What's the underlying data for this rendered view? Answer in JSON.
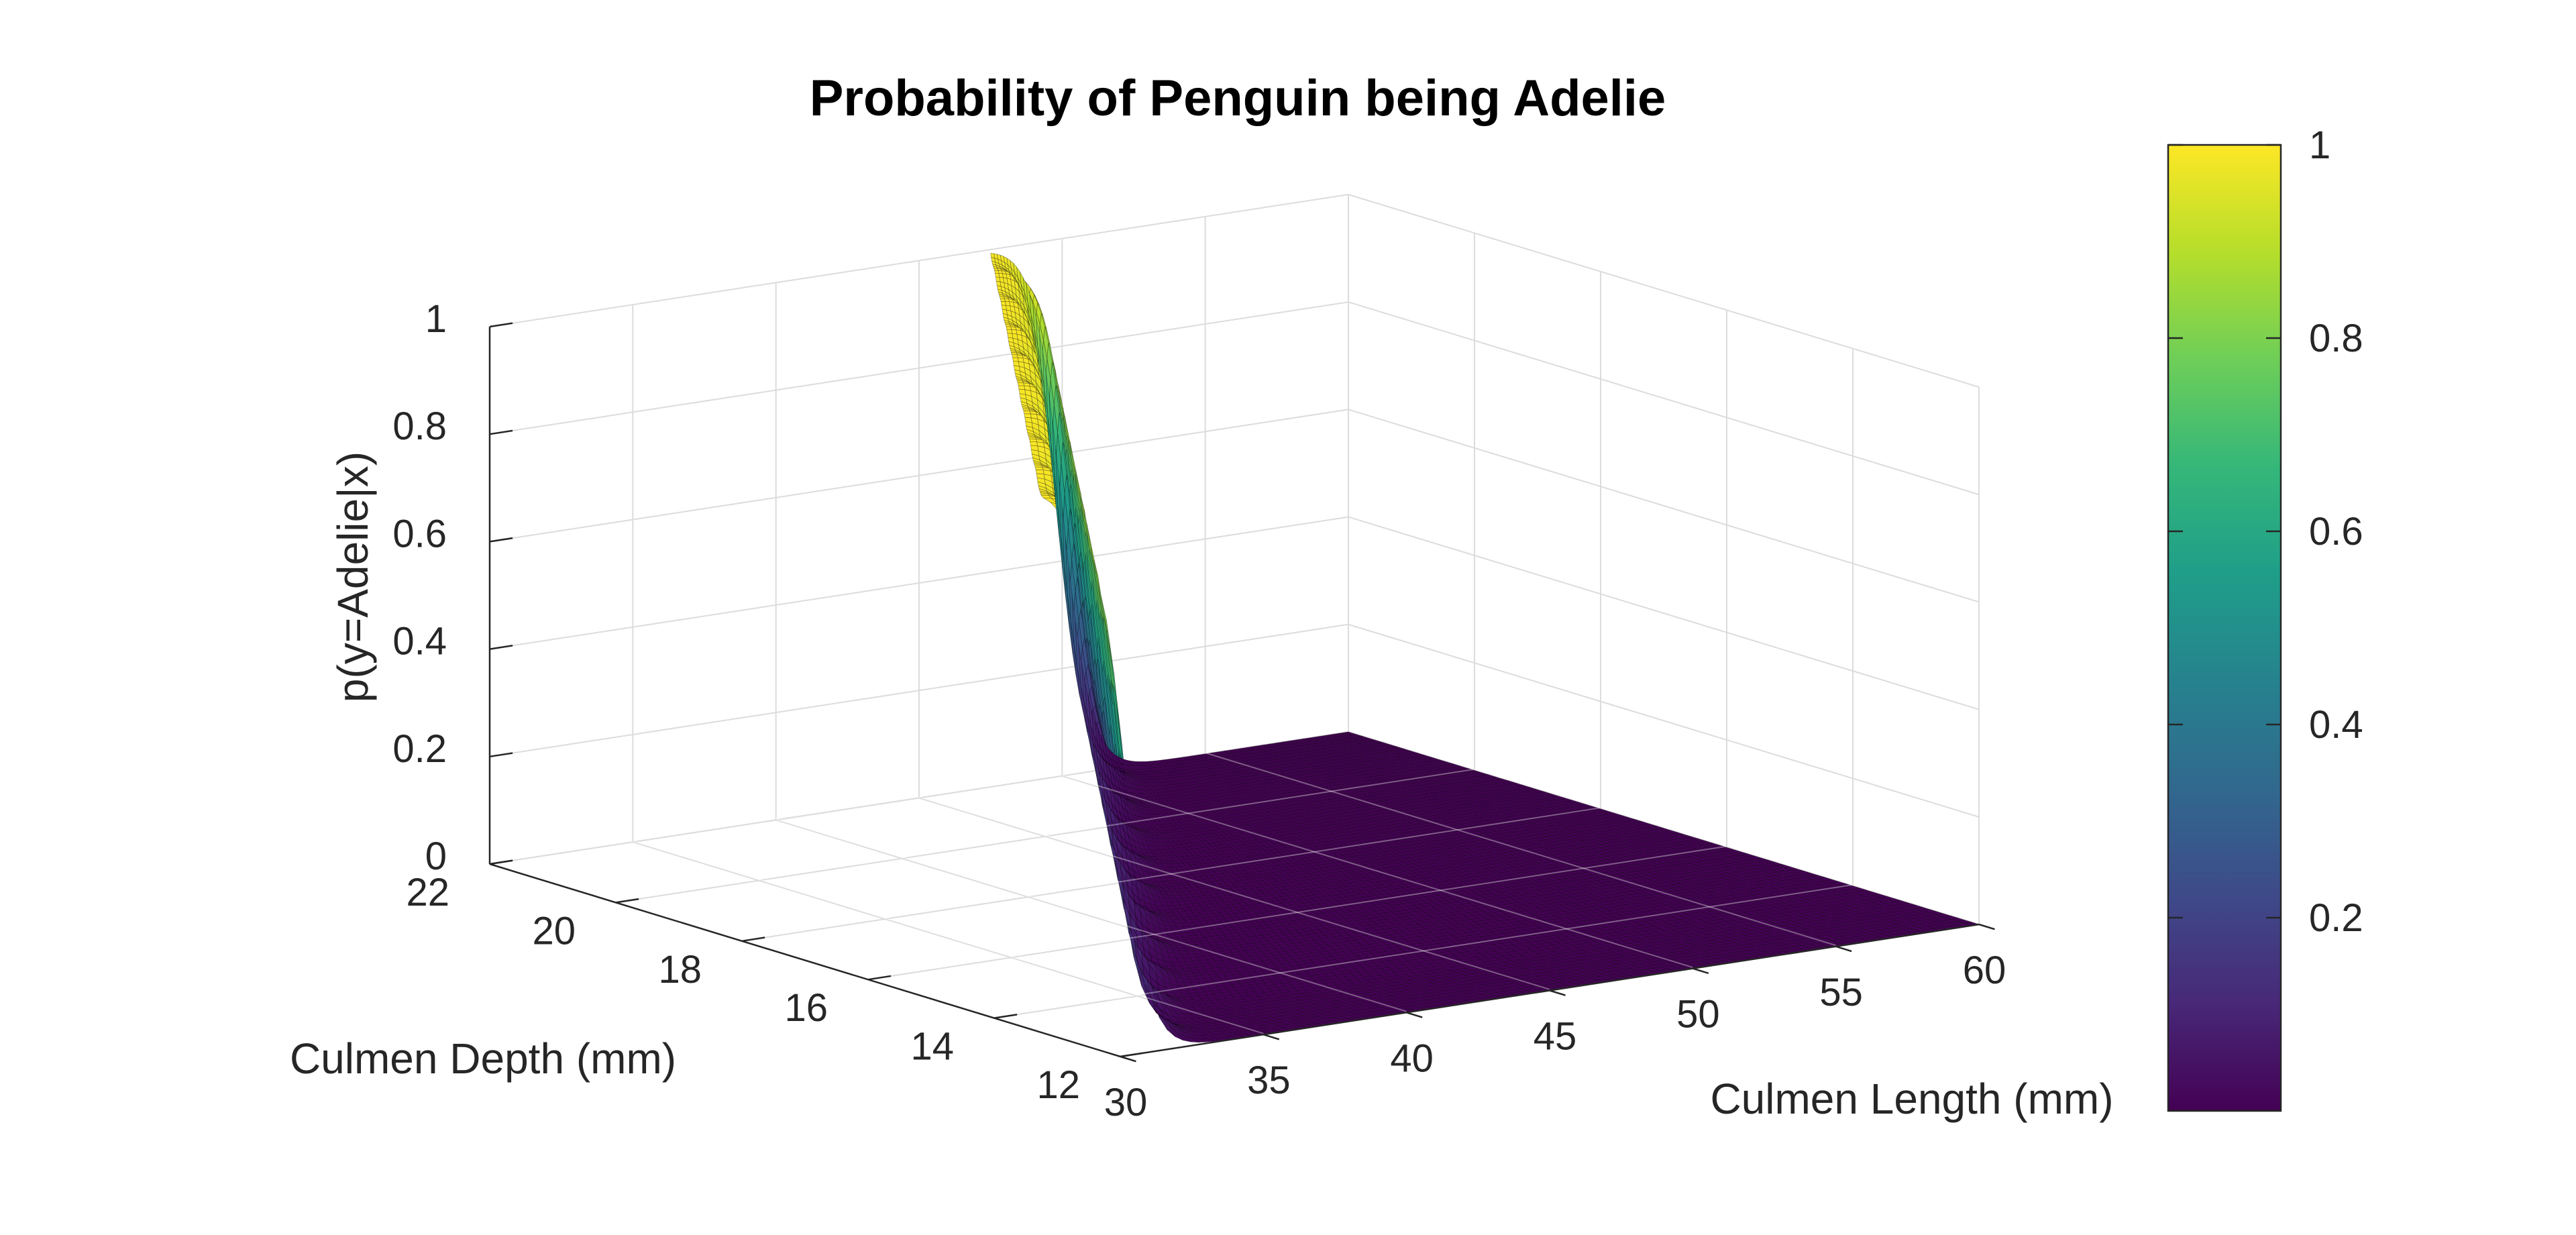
{
  "chart_data": {
    "type": "surface",
    "title": "Probability of Penguin being Adelie",
    "xlabel": "Culmen Length (mm)",
    "ylabel": "Culmen Depth (mm)",
    "zlabel": "p(y=Adelie|x)",
    "xlim": [
      30,
      60
    ],
    "ylim": [
      12,
      22
    ],
    "zlim": [
      0,
      1
    ],
    "xticks": [
      "30",
      "35",
      "40",
      "45",
      "50",
      "55",
      "60"
    ],
    "yticks": [
      "12",
      "14",
      "16",
      "18",
      "20",
      "22"
    ],
    "zticks": [
      "0",
      "0.2",
      "0.4",
      "0.6",
      "0.8",
      "1"
    ],
    "colorbar_ticks": [
      "0.2",
      "0.4",
      "0.6",
      "0.8",
      "1"
    ],
    "colorbar_range": [
      0,
      1
    ],
    "colormap": "viridis",
    "colormap_colors": [
      "#440154",
      "#482878",
      "#3e4a89",
      "#31688e",
      "#26828e",
      "#1f9e89",
      "#35b779",
      "#6ece58",
      "#b5de2b",
      "#fde725"
    ],
    "grid": true,
    "data_domain": {
      "x_range": [
        30,
        60
      ],
      "y_range": [
        12,
        22
      ],
      "description_note": ""
    },
    "boundary": {
      "x_at_y12": 30,
      "x_at_y22": 50
    },
    "transition_width_mm": 0.5,
    "wave_amplitude": 0.12,
    "wave_period_mm": 1.0
  }
}
